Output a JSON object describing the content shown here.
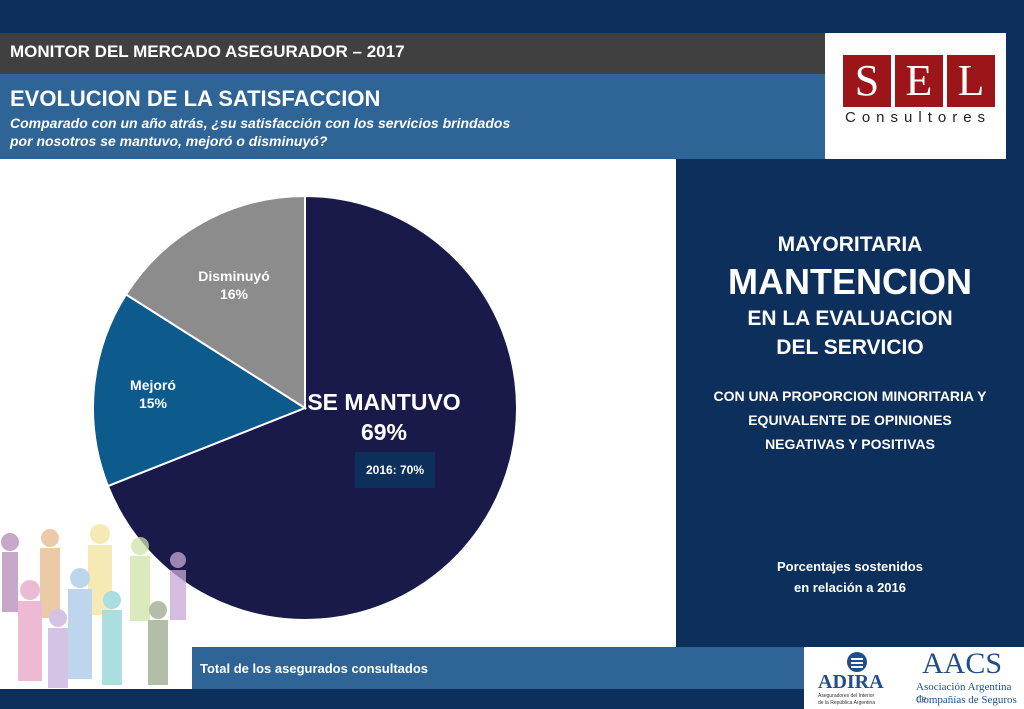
{
  "header": {
    "monitor_title": "MONITOR DEL MERCADO ASEGURADOR – 2017",
    "section_title": "EVOLUCION DE LA SATISFACCION",
    "question_line1": "Comparado con un año atrás, ¿su satisfacción con los servicios brindados",
    "question_line2": "por nosotros se mantuvo, mejoró o disminuyó?"
  },
  "logo_sel": {
    "letters": [
      "S",
      "E",
      "L"
    ],
    "subtitle": "Consultores",
    "color": "#9b1519"
  },
  "chart_data": {
    "type": "pie",
    "slices": [
      {
        "label": "SE MANTUVO",
        "value": 69,
        "display": "69%",
        "color": "#1a1a4a"
      },
      {
        "label": "Mejoró",
        "value": 15,
        "display": "15%",
        "color": "#0d5a8c"
      },
      {
        "label": "Disminuyó",
        "value": 16,
        "display": "16%",
        "color": "#8c8c8c"
      }
    ],
    "annotation": "2016: 70%"
  },
  "right_panel": {
    "line1": "MAYORITARIA",
    "line2": "MANTENCION",
    "line3": "EN LA EVALUACION",
    "line4": "DEL SERVICIO",
    "note1": "CON UNA PROPORCION MINORITARIA Y",
    "note2": "EQUIVALENTE DE OPINIONES",
    "note3": "NEGATIVAS Y POSITIVAS",
    "footer1": "Porcentajes sostenidos",
    "footer2": "en relación a 2016"
  },
  "footer": {
    "base_text": "Total de los asegurados consultados",
    "adira_name": "ADIRA",
    "adira_sub1": "Aseguradores del Interior",
    "adira_sub2": "de la República Argentina",
    "aacs_name": "AACS",
    "aacs_sub1": "Asociación Argentina de",
    "aacs_sub2": "Compañías de Seguros"
  },
  "colors": {
    "navy": "#0d2f5c",
    "blue": "#2f6497",
    "dark_gray": "#404040"
  }
}
